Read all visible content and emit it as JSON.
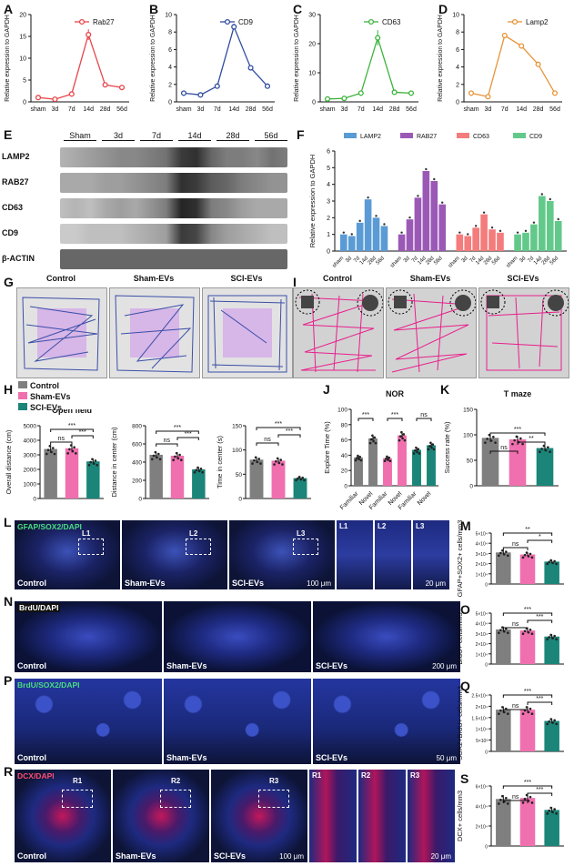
{
  "panels": {
    "A": "A",
    "B": "B",
    "C": "C",
    "D": "D",
    "E": "E",
    "F": "F",
    "G": "G",
    "H": "H",
    "I": "I",
    "J": "J",
    "K": "K",
    "L": "L",
    "M": "M",
    "N": "N",
    "O": "O",
    "P": "P",
    "Q": "Q",
    "R": "R",
    "S": "S"
  },
  "line_common": {
    "ylabel": "Relative expression to GAPDH",
    "categories": [
      "sham",
      "3d",
      "7d",
      "14d",
      "28d",
      "56d"
    ]
  },
  "colors": {
    "rab27": "#e8454a",
    "cd9": "#2f4c9e",
    "cd63": "#3db33d",
    "lamp2": "#e8943a",
    "control": "#7f7f7f",
    "sham_evs": "#f06fae",
    "sci_evs": "#1a8578",
    "lamp2_bar": "#5b9bd5",
    "rab27_bar": "#9b59b6",
    "cd63_bar": "#f47c7c",
    "cd9_bar": "#63c98a",
    "track_blue": "#3b4fa8",
    "track_pink": "#e91e8c"
  },
  "chart_data": [
    {
      "panel": "A",
      "type": "line",
      "legend": "Rab27",
      "categories": [
        "sham",
        "3d",
        "7d",
        "14d",
        "28d",
        "56d"
      ],
      "values": [
        1.0,
        0.6,
        1.8,
        15.4,
        3.9,
        3.3
      ],
      "ylim": [
        0,
        20
      ],
      "yticks": [
        0,
        5,
        10,
        15,
        20
      ]
    },
    {
      "panel": "B",
      "type": "line",
      "legend": "CD9",
      "categories": [
        "sham",
        "3d",
        "7d",
        "14d",
        "28d",
        "56d"
      ],
      "values": [
        1.0,
        0.8,
        1.8,
        8.6,
        3.9,
        1.8
      ],
      "ylim": [
        0,
        10
      ],
      "yticks": [
        0,
        2,
        4,
        6,
        8,
        10
      ]
    },
    {
      "panel": "C",
      "type": "line",
      "legend": "CD63",
      "categories": [
        "sham",
        "3d",
        "7d",
        "14d",
        "28d",
        "56d"
      ],
      "values": [
        1.0,
        1.2,
        3.0,
        22.0,
        3.3,
        3.0
      ],
      "ylim": [
        0,
        30
      ],
      "yticks": [
        0,
        10,
        20,
        30
      ]
    },
    {
      "panel": "D",
      "type": "line",
      "legend": "Lamp2",
      "categories": [
        "sham",
        "3d",
        "7d",
        "14d",
        "28d",
        "56d"
      ],
      "values": [
        1.0,
        0.6,
        7.6,
        6.4,
        4.3,
        1.0
      ],
      "ylim": [
        0,
        10
      ],
      "yticks": [
        0,
        2,
        4,
        6,
        8,
        10
      ]
    },
    {
      "panel": "F",
      "type": "bar",
      "ylabel": "Relative expression to GAPDH",
      "categories": [
        "sham",
        "3d",
        "7d",
        "14d",
        "28d",
        "56d"
      ],
      "series": [
        {
          "name": "LAMP2",
          "values": [
            1.0,
            0.9,
            1.7,
            3.1,
            2.0,
            1.5
          ]
        },
        {
          "name": "RAB27",
          "values": [
            1.0,
            1.9,
            3.2,
            4.8,
            4.2,
            2.8
          ]
        },
        {
          "name": "CD63",
          "values": [
            1.0,
            0.9,
            1.4,
            2.2,
            1.3,
            1.1
          ]
        },
        {
          "name": "CD9",
          "values": [
            1.0,
            1.1,
            1.6,
            3.3,
            3.0,
            1.8
          ]
        }
      ],
      "ylim": [
        0,
        6
      ],
      "yticks": [
        0,
        1,
        2,
        3,
        4,
        5,
        6
      ]
    },
    {
      "panel": "H1",
      "type": "bar",
      "title": "Open field",
      "ylabel": "Overall distance (cm)",
      "categories": [
        "Control",
        "Sham-EVs",
        "SCI-EVs"
      ],
      "values": [
        3400,
        3450,
        2550
      ],
      "ylim": [
        0,
        5000
      ],
      "yticks": [
        0,
        1000,
        2000,
        3000,
        4000,
        5000
      ],
      "sig": [
        "ns",
        "***",
        "***"
      ]
    },
    {
      "panel": "H2",
      "type": "bar",
      "ylabel": "Distance in center (cm)",
      "categories": [
        "Control",
        "Sham-EVs",
        "SCI-EVs"
      ],
      "values": [
        480,
        470,
        320
      ],
      "ylim": [
        0,
        800
      ],
      "yticks": [
        0,
        200,
        400,
        600,
        800
      ],
      "sig": [
        "ns",
        "***",
        "***"
      ]
    },
    {
      "panel": "H3",
      "type": "bar",
      "ylabel": "Time in center (s)",
      "categories": [
        "Control",
        "Sham-EVs",
        "SCI-EVs"
      ],
      "values": [
        80,
        78,
        42
      ],
      "ylim": [
        0,
        150
      ],
      "yticks": [
        0,
        50,
        100,
        150
      ],
      "sig": [
        "ns",
        "***",
        "***"
      ]
    },
    {
      "panel": "J",
      "type": "bar",
      "title": "NOR",
      "ylabel": "Explore Time (%)",
      "categories": [
        "Familiar",
        "Novel",
        "Familiar",
        "Novel",
        "Familiar",
        "Novel"
      ],
      "values": [
        37,
        62,
        36,
        66,
        47,
        53
      ],
      "ylim": [
        0,
        100
      ],
      "yticks": [
        0,
        20,
        40,
        60,
        80,
        100
      ],
      "sig": [
        "***",
        "***",
        "ns"
      ]
    },
    {
      "panel": "K",
      "type": "bar",
      "title": "T maze",
      "ylabel": "Success rate (%)",
      "categories": [
        "Control",
        "Sham-EVs",
        "SCI-EVs"
      ],
      "values": [
        94,
        91,
        74
      ],
      "ylim": [
        0,
        150
      ],
      "yticks": [
        0,
        50,
        100,
        150
      ],
      "sig": [
        "ns",
        "***",
        "**"
      ]
    },
    {
      "panel": "M",
      "type": "bar",
      "ylabel": "GFAP+SOX2+ cells/mm3",
      "categories": [
        "Control",
        "Sham-EVs",
        "SCI-EVs"
      ],
      "values": [
        3.1,
        2.9,
        2.2
      ],
      "ylim": [
        0,
        5
      ],
      "yticks": [
        "0",
        "1×10⁴",
        "2×10⁴",
        "3×10⁴",
        "4×10⁴",
        "5×10⁴"
      ],
      "sig": [
        "ns",
        "**",
        "*"
      ]
    },
    {
      "panel": "O",
      "type": "bar",
      "ylabel": "BrdU+ cells/mm3",
      "categories": [
        "Control",
        "Sham-EVs",
        "SCI-EVs"
      ],
      "values": [
        3.4,
        3.3,
        2.7
      ],
      "ylim": [
        0,
        5
      ],
      "yticks": [
        "0",
        "1×10⁴",
        "2×10⁴",
        "3×10⁴",
        "4×10⁴",
        "5×10⁴"
      ],
      "sig": [
        "ns",
        "***",
        "***"
      ]
    },
    {
      "panel": "Q",
      "type": "bar",
      "ylabel": "SOX2+BrdU+ cells/mm3",
      "categories": [
        "Control",
        "Sham-EVs",
        "SCI-EVs"
      ],
      "values": [
        1.85,
        1.85,
        1.35
      ],
      "ylim": [
        0,
        2.5
      ],
      "yticks": [
        "0",
        "5×10³",
        "1×10⁴",
        "1.5×10⁴",
        "2×10⁴",
        "2.5×10⁴"
      ],
      "sig": [
        "ns",
        "***",
        "***"
      ]
    },
    {
      "panel": "S",
      "type": "bar",
      "ylabel": "DCX+ cells/mm3",
      "categories": [
        "Control",
        "Sham-EVs",
        "SCI-EVs"
      ],
      "values": [
        4.7,
        4.8,
        3.6
      ],
      "ylim": [
        0,
        6
      ],
      "yticks": [
        "0",
        "2×10⁴",
        "4×10⁴",
        "6×10⁴"
      ],
      "sig": [
        "ns",
        "***",
        "***"
      ]
    }
  ],
  "blot": {
    "headers": [
      "Sham",
      "3d",
      "7d",
      "14d",
      "28d",
      "56d"
    ],
    "rows": [
      "LAMP2",
      "RAB27",
      "CD63",
      "CD9",
      "β-ACTIN"
    ]
  },
  "tracks": {
    "G": [
      "Control",
      "Sham-EVs",
      "SCI-EVs"
    ],
    "I": [
      "Control",
      "Sham-EVs",
      "SCI-EVs"
    ]
  },
  "legend_groups": [
    "Control",
    "Sham-EVs",
    "SCI-EVs"
  ],
  "micro": {
    "L": {
      "stain": "GFAP/SOX2/DAPI",
      "captions": [
        "Control",
        "Sham-EVs",
        "SCI-EVs"
      ],
      "boxes": [
        "L1",
        "L2",
        "L3"
      ],
      "scale": "100 μm",
      "zoom_scale": "20 μm"
    },
    "N": {
      "stain": "BrdU/DAPI",
      "captions": [
        "Control",
        "Sham-EVs",
        "SCI-EVs"
      ],
      "scale": "200 μm"
    },
    "P": {
      "stain": "BrdU/SOX2/DAPI",
      "captions": [
        "Control",
        "Sham-EVs",
        "SCI-EVs"
      ],
      "scale": "50 μm"
    },
    "R": {
      "stain": "DCX/DAPI",
      "captions": [
        "Control",
        "Sham-EVs",
        "SCI-EVs"
      ],
      "boxes": [
        "R1",
        "R2",
        "R3"
      ],
      "scale": "100 μm",
      "zoom_scale": "20 μm"
    }
  }
}
